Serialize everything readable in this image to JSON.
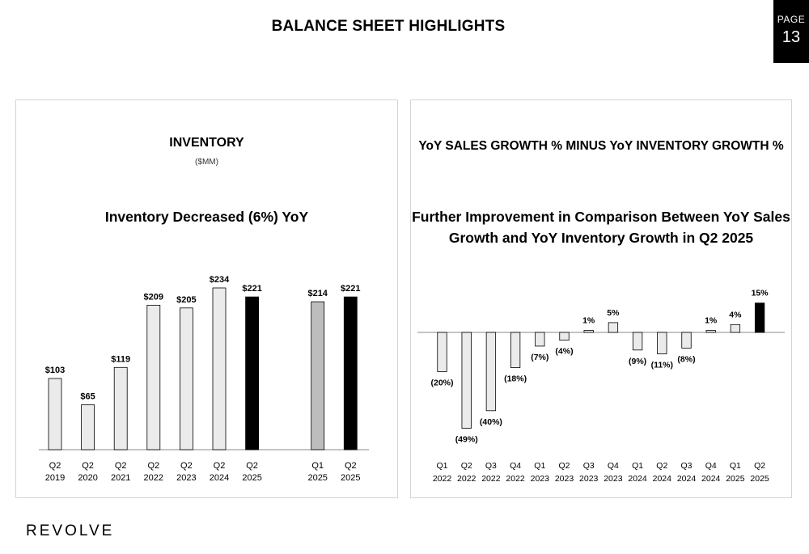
{
  "page": {
    "title": "BALANCE SHEET HIGHLIGHTS",
    "badge_label": "PAGE",
    "badge_number": "13",
    "brand": "REVOLVE"
  },
  "left_panel": {
    "title": "INVENTORY",
    "subtitle": "($MM)",
    "headline": "Inventory Decreased (6%) YoY"
  },
  "right_panel": {
    "title": "YoY SALES GROWTH % MINUS YoY INVENTORY GROWTH %",
    "headline_line1": "Further Improvement in Comparison Between YoY Sales",
    "headline_line2": "Growth and YoY Inventory Growth in Q2 2025"
  },
  "colors": {
    "light_bar": "#ebebeb",
    "mid_bar": "#bdbdbd",
    "highlight_bar": "#000000",
    "bar_stroke": "#000000",
    "axis": "#a0a0a0"
  },
  "chart_data": [
    {
      "type": "bar",
      "title": "INVENTORY",
      "unit": "($MM)",
      "categories": [
        [
          "Q2",
          "2019"
        ],
        [
          "Q2",
          "2020"
        ],
        [
          "Q2",
          "2021"
        ],
        [
          "Q2",
          "2022"
        ],
        [
          "Q2",
          "2023"
        ],
        [
          "Q2",
          "2024"
        ],
        [
          "Q2",
          "2025"
        ],
        [
          "Q1",
          "2025"
        ],
        [
          "Q2",
          "2025"
        ]
      ],
      "values": [
        103,
        65,
        119,
        209,
        205,
        234,
        221,
        214,
        221
      ],
      "labels": [
        "$103",
        "$65",
        "$119",
        "$209",
        "$205",
        "$234",
        "$221",
        "$214",
        "$221"
      ],
      "fills": [
        "light",
        "light",
        "light",
        "light",
        "light",
        "light",
        "highlight",
        "mid",
        "highlight"
      ],
      "groups": [
        7,
        2
      ],
      "ylim": [
        0,
        234
      ],
      "grid": false
    },
    {
      "type": "bar",
      "title": "YoY SALES GROWTH % MINUS YoY INVENTORY GROWTH %",
      "categories": [
        [
          "Q1",
          "2022"
        ],
        [
          "Q2",
          "2022"
        ],
        [
          "Q3",
          "2022"
        ],
        [
          "Q4",
          "2022"
        ],
        [
          "Q1",
          "2023"
        ],
        [
          "Q2",
          "2023"
        ],
        [
          "Q3",
          "2023"
        ],
        [
          "Q4",
          "2023"
        ],
        [
          "Q1",
          "2024"
        ],
        [
          "Q2",
          "2024"
        ],
        [
          "Q3",
          "2024"
        ],
        [
          "Q4",
          "2024"
        ],
        [
          "Q1",
          "2025"
        ],
        [
          "Q2",
          "2025"
        ]
      ],
      "values": [
        -20,
        -49,
        -40,
        -18,
        -7,
        -4,
        1,
        5,
        -9,
        -11,
        -8,
        1,
        4,
        15
      ],
      "labels": [
        "(20%)",
        "(49%)",
        "(40%)",
        "(18%)",
        "(7%)",
        "(4%)",
        "1%",
        "5%",
        "(9%)",
        "(11%)",
        "(8%)",
        "1%",
        "4%",
        "15%"
      ],
      "fills": [
        "light",
        "light",
        "light",
        "light",
        "light",
        "light",
        "light",
        "light",
        "light",
        "light",
        "light",
        "light",
        "light",
        "highlight"
      ],
      "ylim": [
        -49,
        15
      ],
      "grid": false
    }
  ]
}
